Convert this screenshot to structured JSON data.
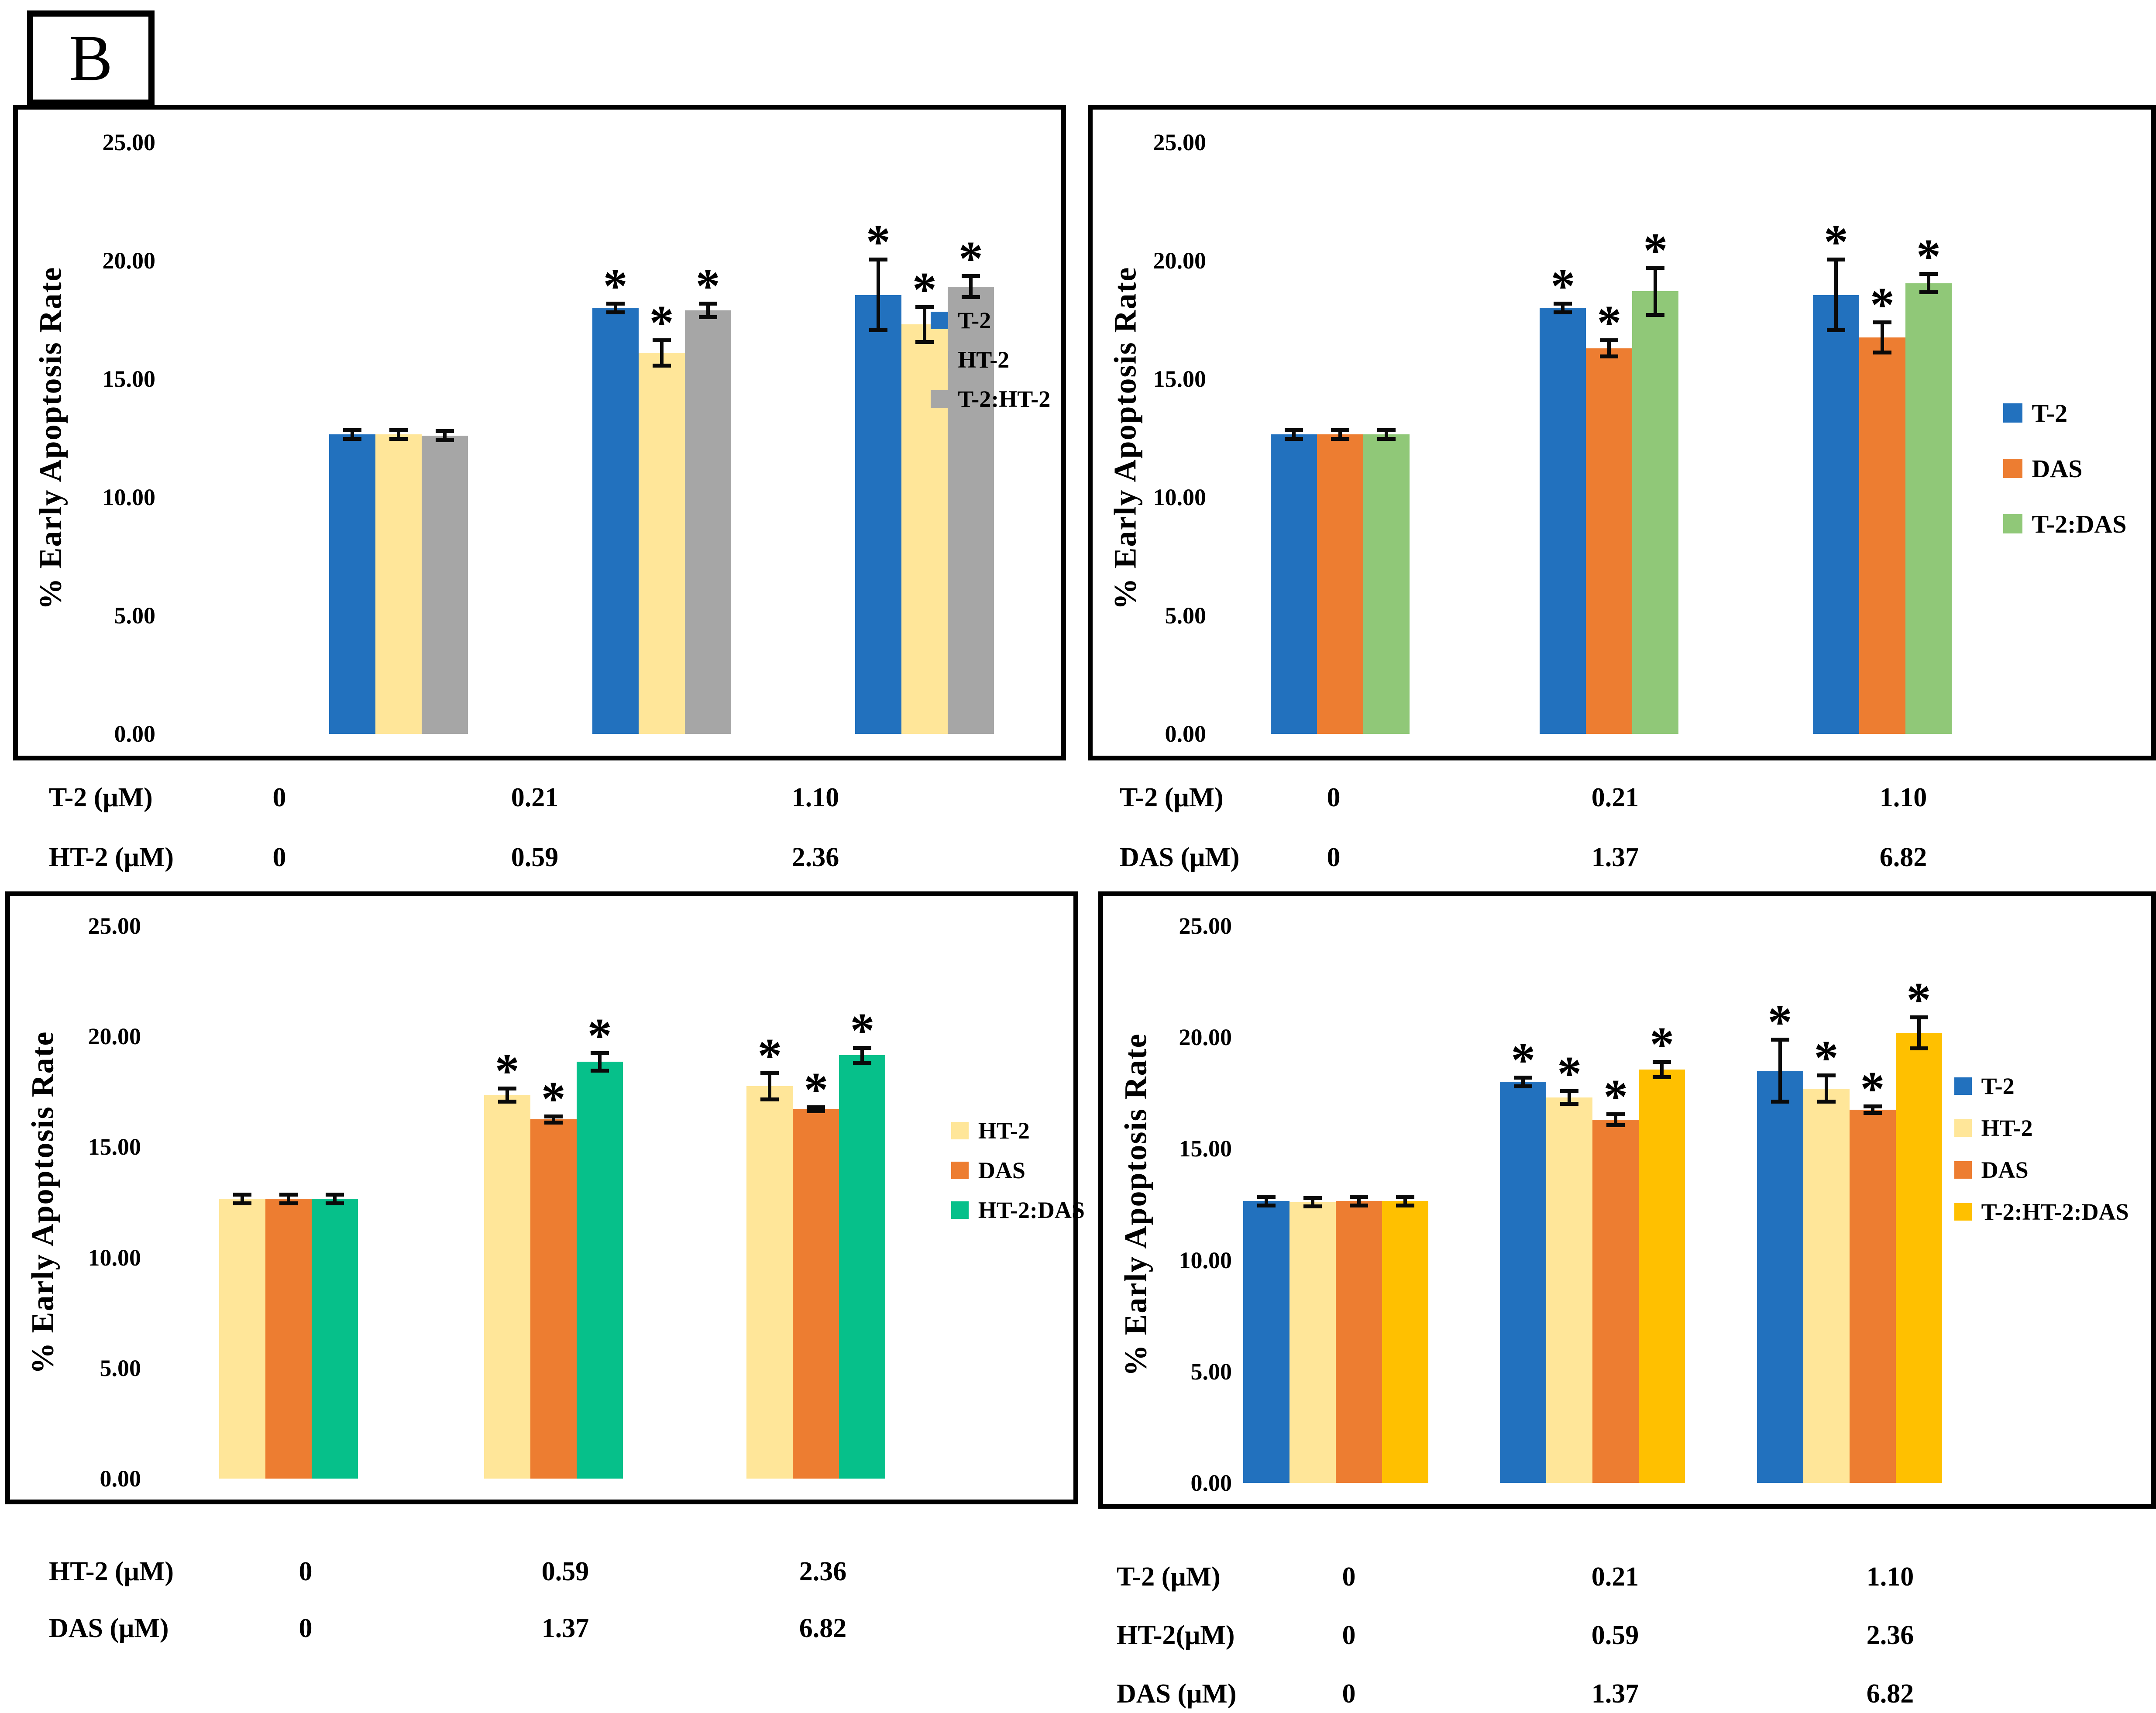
{
  "panel_label": "B",
  "y_axis_title": "% Early Apoptosis Rate",
  "colors": {
    "T-2": "#2271BE",
    "HT-2": "#FFE699",
    "T-2:HT-2": "#A6A6A6",
    "DAS": "#ED7D31",
    "T-2:DAS": "#90C878",
    "HT-2:DAS": "#06C08A",
    "T-2:HT-2:DAS": "#FFC000"
  },
  "chart_data": [
    {
      "type": "bar",
      "position": "top-left",
      "title": "",
      "xlabel": "",
      "ylabel": "% Early Apoptosis Rate",
      "ylim": [
        0,
        25
      ],
      "ytick_labels": [
        "25.00",
        "20.00",
        "15.00",
        "10.00",
        "5.00",
        "0.00"
      ],
      "ytick_values": [
        25,
        20,
        15,
        10,
        5,
        0
      ],
      "grid": false,
      "legend_position": "inside-right",
      "legend": [
        "T-2",
        "HT-2",
        "T-2:HT-2"
      ],
      "series": [
        {
          "name": "T-2",
          "color": "#2271BE",
          "values": [
            12.65,
            18.0,
            18.55
          ],
          "errors": [
            0.2,
            0.2,
            1.5
          ],
          "significant": [
            false,
            true,
            true
          ]
        },
        {
          "name": "HT-2",
          "color": "#FFE699",
          "values": [
            12.65,
            16.1,
            17.3
          ],
          "errors": [
            0.2,
            0.55,
            0.75
          ],
          "significant": [
            false,
            true,
            true
          ]
        },
        {
          "name": "T-2:HT-2",
          "color": "#A6A6A6",
          "values": [
            12.6,
            17.9,
            18.9
          ],
          "errors": [
            0.2,
            0.3,
            0.45
          ],
          "significant": [
            false,
            true,
            true
          ]
        }
      ],
      "dose_table": {
        "rows": [
          {
            "label": "T-2 (μM)",
            "values": [
              "0",
              "0.21",
              "1.10"
            ]
          },
          {
            "label": "HT-2 (μM)",
            "values": [
              "0",
              "0.59",
              "2.36"
            ]
          }
        ]
      }
    },
    {
      "type": "bar",
      "position": "top-right",
      "title": "",
      "xlabel": "",
      "ylabel": "% Early Apoptosis Rate",
      "ylim": [
        0,
        25
      ],
      "ytick_labels": [
        "25.00",
        "20.00",
        "15.00",
        "10.00",
        "5.00",
        "0.00"
      ],
      "ytick_values": [
        25,
        20,
        15,
        10,
        5,
        0
      ],
      "grid": false,
      "legend_position": "inside-right",
      "legend": [
        "T-2",
        "DAS",
        "T-2:DAS"
      ],
      "series": [
        {
          "name": "T-2",
          "color": "#2271BE",
          "values": [
            12.65,
            18.0,
            18.55
          ],
          "errors": [
            0.2,
            0.2,
            1.5
          ],
          "significant": [
            false,
            true,
            true
          ]
        },
        {
          "name": "DAS",
          "color": "#ED7D31",
          "values": [
            12.65,
            16.3,
            16.75
          ],
          "errors": [
            0.2,
            0.35,
            0.65
          ],
          "significant": [
            false,
            true,
            true
          ]
        },
        {
          "name": "T-2:DAS",
          "color": "#90C878",
          "values": [
            12.65,
            18.7,
            19.05
          ],
          "errors": [
            0.2,
            1.0,
            0.4
          ],
          "significant": [
            false,
            true,
            true
          ]
        }
      ],
      "dose_table": {
        "rows": [
          {
            "label": "T-2 (μM)",
            "values": [
              "0",
              "0.21",
              "1.10"
            ]
          },
          {
            "label": "DAS (μM)",
            "values": [
              "0",
              "1.37",
              "6.82"
            ]
          }
        ]
      }
    },
    {
      "type": "bar",
      "position": "bottom-left",
      "title": "",
      "xlabel": "",
      "ylabel": "% Early Apoptosis Rate",
      "ylim": [
        0,
        25
      ],
      "ytick_labels": [
        "25.00",
        "20.00",
        "15.00",
        "10.00",
        "5.00",
        "0.00"
      ],
      "ytick_values": [
        25,
        20,
        15,
        10,
        5,
        0
      ],
      "grid": false,
      "legend_position": "inside-right",
      "legend": [
        "HT-2",
        "DAS",
        "HT-2:DAS"
      ],
      "series": [
        {
          "name": "HT-2",
          "color": "#FFE699",
          "values": [
            12.65,
            17.35,
            17.75
          ],
          "errors": [
            0.2,
            0.3,
            0.6
          ],
          "significant": [
            false,
            true,
            true
          ]
        },
        {
          "name": "DAS",
          "color": "#ED7D31",
          "values": [
            12.65,
            16.25,
            16.7
          ],
          "errors": [
            0.2,
            0.15,
            0.1
          ],
          "significant": [
            false,
            true,
            true
          ]
        },
        {
          "name": "HT-2:DAS",
          "color": "#06C08A",
          "values": [
            12.65,
            18.85,
            19.15
          ],
          "errors": [
            0.2,
            0.4,
            0.35
          ],
          "significant": [
            false,
            true,
            true
          ]
        }
      ],
      "dose_table": {
        "rows": [
          {
            "label": "HT-2 (μM)",
            "values": [
              "0",
              "0.59",
              "2.36"
            ]
          },
          {
            "label": "DAS (μM)",
            "values": [
              "0",
              "1.37",
              "6.82"
            ]
          }
        ]
      }
    },
    {
      "type": "bar",
      "position": "bottom-right",
      "title": "",
      "xlabel": "",
      "ylabel": "% Early Apoptosis Rate",
      "ylim": [
        0,
        25
      ],
      "ytick_labels": [
        "25.00",
        "20.00",
        "15.00",
        "10.00",
        "5.00",
        "0.00"
      ],
      "ytick_values": [
        25,
        20,
        15,
        10,
        5,
        0
      ],
      "grid": false,
      "legend_position": "inside-right",
      "legend": [
        "T-2",
        "HT-2",
        "DAS",
        "T-2:HT-2:DAS"
      ],
      "series": [
        {
          "name": "T-2",
          "color": "#2271BE",
          "values": [
            12.65,
            18.0,
            18.5
          ],
          "errors": [
            0.2,
            0.2,
            1.4
          ],
          "significant": [
            false,
            true,
            true
          ]
        },
        {
          "name": "HT-2",
          "color": "#FFE699",
          "values": [
            12.6,
            17.3,
            17.7
          ],
          "errors": [
            0.2,
            0.3,
            0.6
          ],
          "significant": [
            false,
            true,
            true
          ]
        },
        {
          "name": "DAS",
          "color": "#ED7D31",
          "values": [
            12.65,
            16.3,
            16.75
          ],
          "errors": [
            0.2,
            0.25,
            0.15
          ],
          "significant": [
            false,
            true,
            true
          ]
        },
        {
          "name": "T-2:HT-2:DAS",
          "color": "#FFC000",
          "values": [
            12.65,
            18.55,
            20.2
          ],
          "errors": [
            0.2,
            0.35,
            0.7
          ],
          "significant": [
            false,
            true,
            true
          ]
        }
      ],
      "dose_table": {
        "rows": [
          {
            "label": "T-2 (μM)",
            "values": [
              "0",
              "0.21",
              "1.10"
            ]
          },
          {
            "label": "HT-2(μM)",
            "values": [
              "0",
              "0.59",
              "2.36"
            ]
          },
          {
            "label": "DAS (μM)",
            "values": [
              "0",
              "1.37",
              "6.82"
            ]
          }
        ]
      }
    }
  ]
}
